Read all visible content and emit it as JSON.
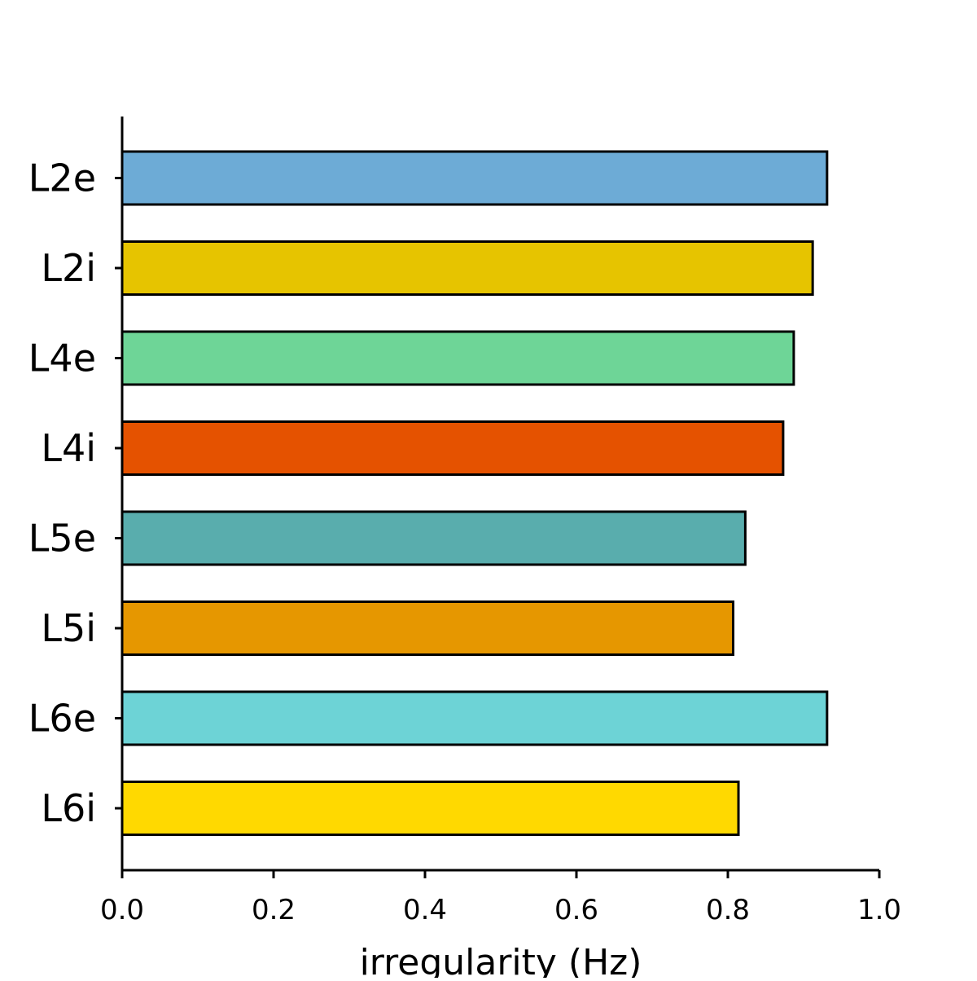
{
  "chart_data": {
    "type": "bar",
    "orientation": "horizontal",
    "categories": [
      "L2e",
      "L2i",
      "L4e",
      "L4i",
      "L5e",
      "L5i",
      "L6e",
      "L6i"
    ],
    "values": [
      0.931,
      0.912,
      0.887,
      0.873,
      0.823,
      0.807,
      0.931,
      0.814
    ],
    "colors": [
      "#6dabd6",
      "#e6c400",
      "#6ed597",
      "#e55200",
      "#59adad",
      "#e69700",
      "#6dd3d6",
      "#ffd900"
    ],
    "xlabel": "irregularity (Hz)",
    "ylabel": "",
    "title": "",
    "xlim": [
      0.0,
      1.0
    ],
    "xticks": [
      "0.0",
      "0.2",
      "0.4",
      "0.6",
      "0.8",
      "1.0"
    ],
    "grid": false,
    "legend": "none"
  }
}
